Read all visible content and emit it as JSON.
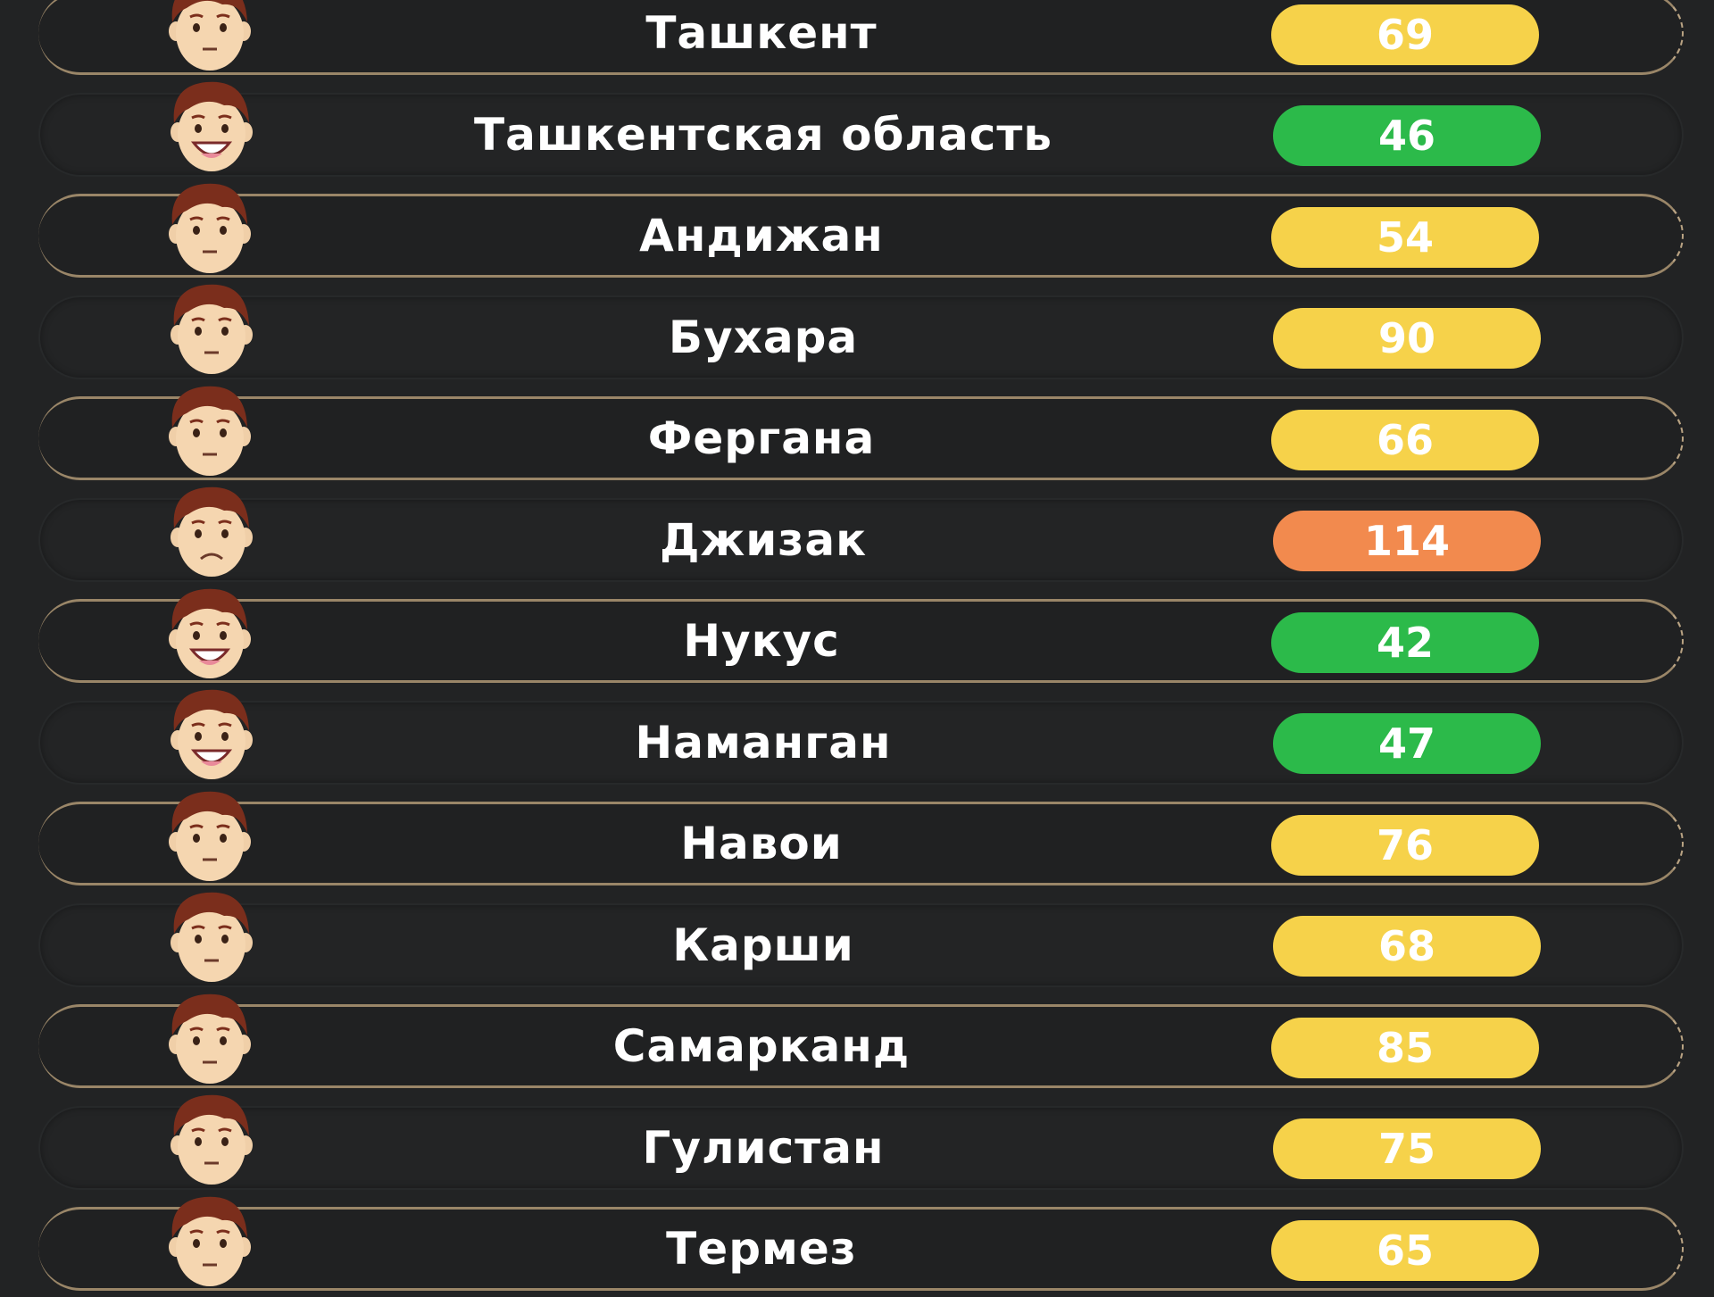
{
  "colors": {
    "good": "#2cba4a",
    "moderate": "#f6d24a",
    "unhealthy": "#f28a4e"
  },
  "rows": [
    {
      "city": "Ташкент",
      "value": "69",
      "level": "moderate",
      "face": "neutral"
    },
    {
      "city": "Ташкентская область",
      "value": "46",
      "level": "good",
      "face": "happy"
    },
    {
      "city": "Андижан",
      "value": "54",
      "level": "moderate",
      "face": "neutral"
    },
    {
      "city": "Бухара",
      "value": "90",
      "level": "moderate",
      "face": "neutral"
    },
    {
      "city": "Фергана",
      "value": "66",
      "level": "moderate",
      "face": "neutral"
    },
    {
      "city": "Джизак",
      "value": "114",
      "level": "unhealthy",
      "face": "sad"
    },
    {
      "city": "Нукус",
      "value": "42",
      "level": "good",
      "face": "happy"
    },
    {
      "city": "Наманган",
      "value": "47",
      "level": "good",
      "face": "happy"
    },
    {
      "city": "Навои",
      "value": "76",
      "level": "moderate",
      "face": "neutral"
    },
    {
      "city": "Карши",
      "value": "68",
      "level": "moderate",
      "face": "neutral"
    },
    {
      "city": "Самарканд",
      "value": "85",
      "level": "moderate",
      "face": "neutral"
    },
    {
      "city": "Гулистан",
      "value": "75",
      "level": "moderate",
      "face": "neutral"
    },
    {
      "city": "Термез",
      "value": "65",
      "level": "moderate",
      "face": "neutral"
    }
  ]
}
